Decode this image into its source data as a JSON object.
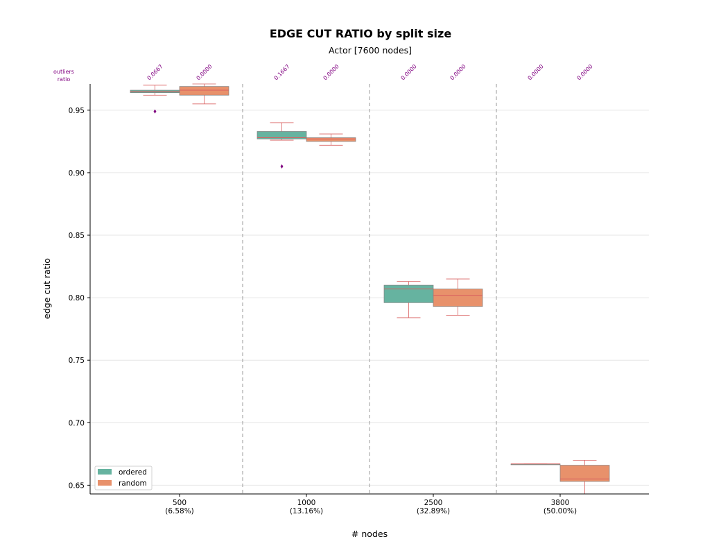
{
  "chart_data": {
    "type": "box",
    "title": "EDGE CUT RATIO by split size",
    "subtitle": "Actor [7600 nodes]",
    "xlabel": "# nodes",
    "ylabel": "edge cut ratio",
    "ylim": [
      0.643,
      0.971
    ],
    "yticks": [
      0.65,
      0.7,
      0.75,
      0.8,
      0.85,
      0.9,
      0.95
    ],
    "ytick_labels": [
      "0.65",
      "0.70",
      "0.75",
      "0.80",
      "0.85",
      "0.90",
      "0.95"
    ],
    "grid": "y",
    "legend": "lower-left",
    "outliers_header": [
      "outliers",
      "ratio"
    ],
    "categories": [
      {
        "label": "500",
        "sublabel": "(6.58%)"
      },
      {
        "label": "1000",
        "sublabel": "(13.16%)"
      },
      {
        "label": "2500",
        "sublabel": "(32.89%)"
      },
      {
        "label": "3800",
        "sublabel": "(50.00%)"
      }
    ],
    "series": [
      {
        "name": "ordered",
        "color": "#66b3a0",
        "boxes": [
          {
            "whislo": 0.962,
            "q1": 0.964,
            "med": 0.965,
            "q3": 0.966,
            "whishi": 0.97,
            "fliers": [
              0.949
            ],
            "outlier_ratio": "0.0667"
          },
          {
            "whislo": 0.926,
            "q1": 0.927,
            "med": 0.928,
            "q3": 0.933,
            "whishi": 0.94,
            "fliers": [
              0.905
            ],
            "outlier_ratio": "0.1667"
          },
          {
            "whislo": 0.784,
            "q1": 0.796,
            "med": 0.807,
            "q3": 0.81,
            "whishi": 0.813,
            "fliers": [],
            "outlier_ratio": "0.0000"
          },
          {
            "whislo": 0.667,
            "q1": 0.667,
            "med": 0.667,
            "q3": 0.667,
            "whishi": 0.667,
            "fliers": [],
            "outlier_ratio": "0.0000"
          }
        ]
      },
      {
        "name": "random",
        "color": "#e8916b",
        "boxes": [
          {
            "whislo": 0.955,
            "q1": 0.962,
            "med": 0.966,
            "q3": 0.969,
            "whishi": 0.971,
            "fliers": [],
            "outlier_ratio": "0.0000"
          },
          {
            "whislo": 0.922,
            "q1": 0.925,
            "med": 0.927,
            "q3": 0.928,
            "whishi": 0.931,
            "fliers": [],
            "outlier_ratio": "0.0000"
          },
          {
            "whislo": 0.786,
            "q1": 0.793,
            "med": 0.802,
            "q3": 0.807,
            "whishi": 0.815,
            "fliers": [],
            "outlier_ratio": "0.0000"
          },
          {
            "whislo": 0.642,
            "q1": 0.653,
            "med": 0.655,
            "q3": 0.666,
            "whishi": 0.67,
            "fliers": [],
            "outlier_ratio": "0.0000"
          }
        ]
      }
    ]
  },
  "colors": {
    "grid": "#e6e6e6",
    "whisker": "#d95f5f",
    "separator": "#b0b0b0",
    "flier": "#800080",
    "outlier_text": "#800080"
  }
}
